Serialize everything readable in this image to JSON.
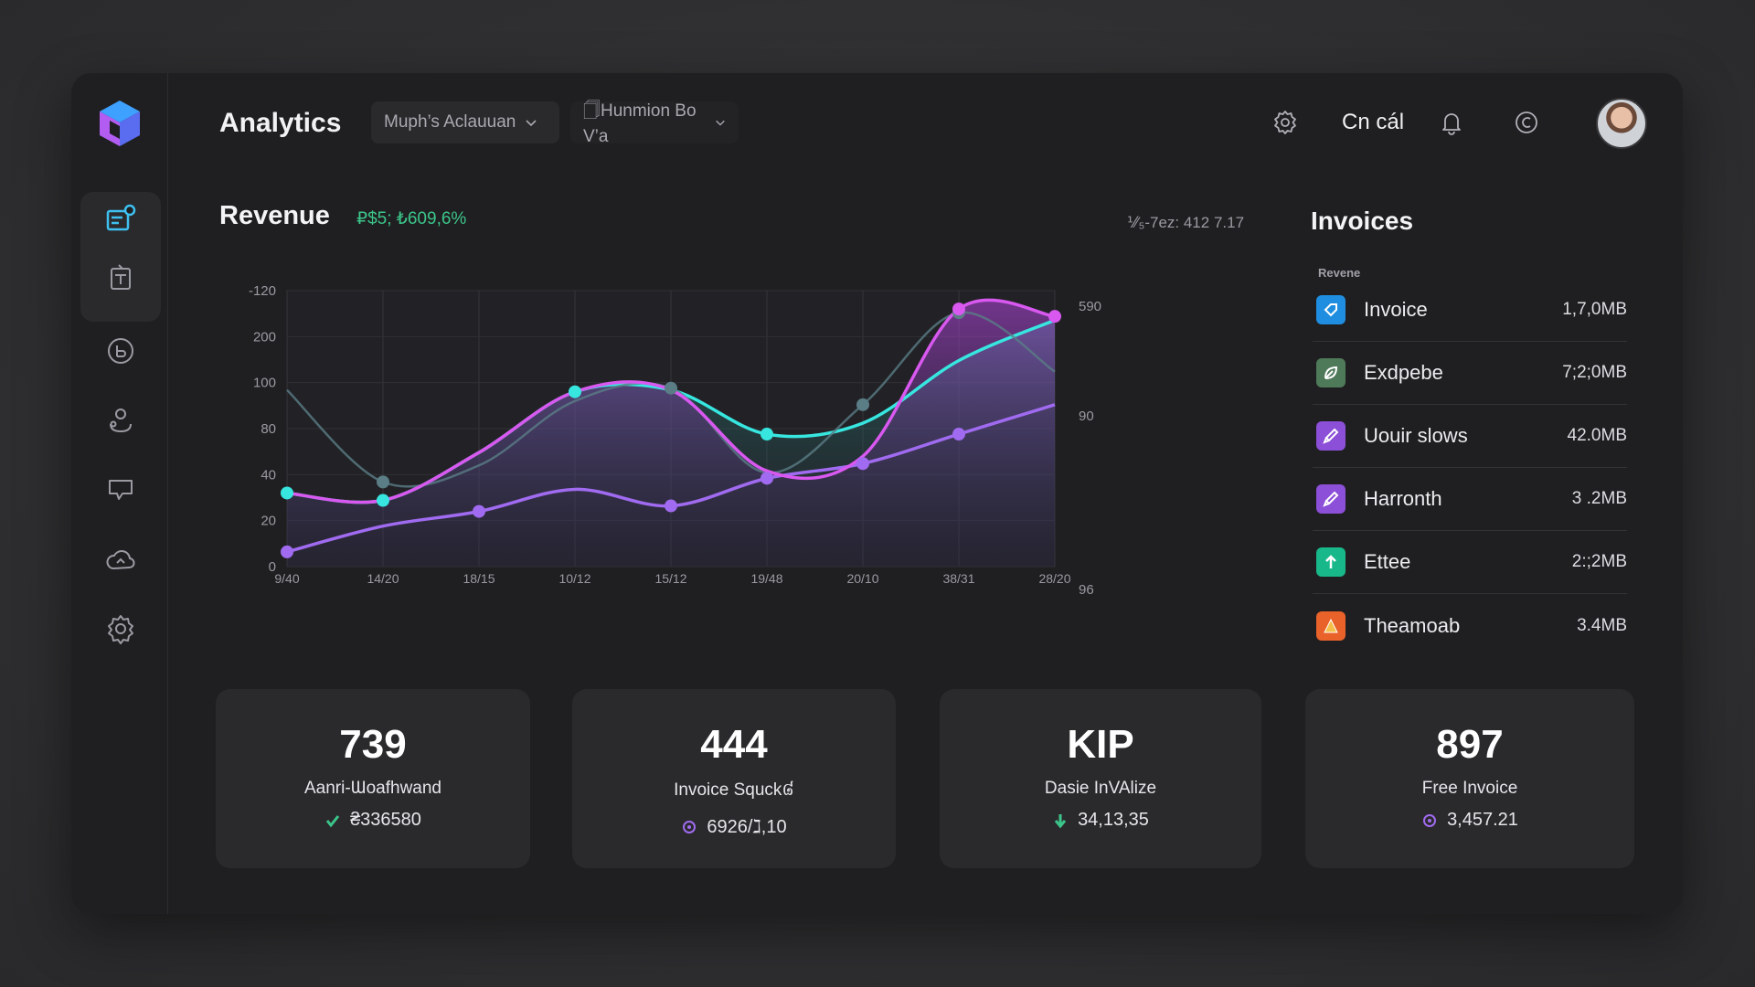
{
  "header": {
    "title": "Analytics",
    "dropdown_1": "Muph’s Aclauuan",
    "dropdown_2": "🗍Hunmion Bo V’a",
    "action_label": "Cn cál"
  },
  "revenue": {
    "title": "Revenue",
    "subtitle": "₽$5; ₺609,6%",
    "meta": "⅟⁄₅-7ez: 412 7.17"
  },
  "chart_data": {
    "type": "area",
    "x": [
      "9/40",
      "14/20",
      "18/15",
      "10/12",
      "15/12",
      "19/48",
      "20/10",
      "38/31",
      "28/20"
    ],
    "y_left_ticks": [
      "-120",
      "200",
      "100",
      "80",
      "40",
      "20",
      "0"
    ],
    "y_right_ticks": [
      "590",
      "90",
      "96"
    ],
    "series": [
      {
        "color": "#38e6e0",
        "values": [
          40,
          36,
          62,
          95,
          96,
          72,
          78,
          112,
          134
        ]
      },
      {
        "color": "#5a7d86",
        "values": [
          96,
          46,
          55,
          90,
          97,
          51,
          88,
          138,
          106
        ]
      },
      {
        "color": "#a06bf0",
        "values": [
          8,
          22,
          30,
          42,
          33,
          48,
          56,
          72,
          88
        ]
      },
      {
        "color": "#d858f0",
        "values": [
          40,
          36,
          62,
          95,
          96,
          52,
          60,
          140,
          136
        ]
      }
    ],
    "grid": true
  },
  "invoices": {
    "title": "Invoices",
    "subtitle": "Revene",
    "items": [
      {
        "name": "Invoice",
        "size": "1,7,0MB",
        "color": "#1f8ee0",
        "icon": "tag-icon"
      },
      {
        "name": "Exdpebe",
        "size": "7;2;0MB",
        "color": "#4f7a5a",
        "icon": "leaf-icon"
      },
      {
        "name": "Uouir slows",
        "size": "42.0MB",
        "color": "#8c4fd8",
        "icon": "brush-icon"
      },
      {
        "name": "Harronth",
        "size": "3 .2MB",
        "color": "#8c4fd8",
        "icon": "brush-icon"
      },
      {
        "name": "Ettee",
        "size": "2:;2MB",
        "color": "#18b88a",
        "icon": "arrow-up-icon"
      },
      {
        "name": "Theamoab",
        "size": "3.4MB",
        "color": "#e8622a",
        "icon": "triangle-icon"
      }
    ]
  },
  "stats": [
    {
      "value": "739",
      "label": "Aanri-Ɯoafhwand",
      "sub": "₴336580",
      "icon": "check-icon",
      "icon_color": "#3cc58a"
    },
    {
      "value": "444",
      "label": "Invoice Squck៨",
      "sub": "6926/ℷ,10",
      "icon": "circle-icon",
      "icon_color": "#a06bf0"
    },
    {
      "value": "KIP",
      "label": "Dasie InVAlize",
      "sub": "34,13,35",
      "icon": "arrow-down-icon",
      "icon_color": "#3cc58a"
    },
    {
      "value": "897",
      "label": "Free Invoice",
      "sub": "3,457.21",
      "icon": "circle-icon",
      "icon_color": "#a06bf0"
    }
  ]
}
